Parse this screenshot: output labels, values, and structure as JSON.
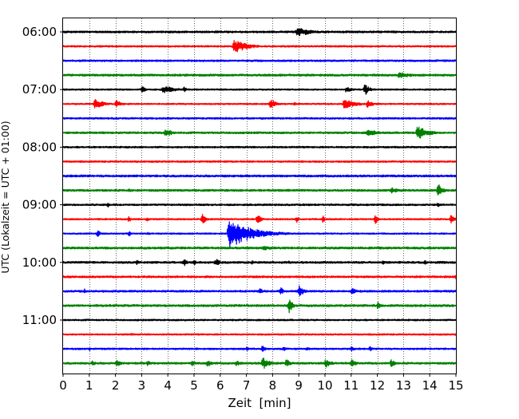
{
  "chart_data": {
    "type": "line",
    "title": "",
    "xlabel": "Zeit  [min]",
    "ylabel": "UTC (Lokalzeit = UTC + 01:00)",
    "xlim": [
      0,
      15
    ],
    "x_ticks": [
      "0",
      "1",
      "2",
      "3",
      "4",
      "5",
      "6",
      "7",
      "8",
      "9",
      "10",
      "11",
      "12",
      "13",
      "14",
      "15"
    ],
    "y_tick_labels": [
      "06:00",
      "07:00",
      "08:00",
      "09:00",
      "10:00",
      "11:00"
    ],
    "grid": "vertical dotted",
    "line_interval_minutes": 15,
    "series_colors": [
      "#000000",
      "#ff0000",
      "#0000ff",
      "#008000"
    ],
    "traces": [
      {
        "start": "06:00",
        "color": "#000000",
        "events": [
          {
            "t": 8.9,
            "amp": 0.7,
            "dur": 1.5
          }
        ]
      },
      {
        "start": "06:15",
        "color": "#ff0000",
        "events": [
          {
            "t": 6.5,
            "amp": 1.0,
            "dur": 1.4
          },
          {
            "t": 8.3,
            "amp": 0.2,
            "dur": 0.4
          }
        ]
      },
      {
        "start": "06:30",
        "color": "#0000ff",
        "events": []
      },
      {
        "start": "06:45",
        "color": "#008000",
        "events": [
          {
            "t": 8.3,
            "amp": 0.3,
            "dur": 0.3
          },
          {
            "t": 12.8,
            "amp": 0.45,
            "dur": 1.6
          }
        ]
      },
      {
        "start": "07:00",
        "color": "#000000",
        "events": [
          {
            "t": 3.0,
            "amp": 0.5,
            "dur": 0.4
          },
          {
            "t": 3.8,
            "amp": 0.6,
            "dur": 1.2
          },
          {
            "t": 4.6,
            "amp": 0.45,
            "dur": 0.4
          },
          {
            "t": 10.8,
            "amp": 0.55,
            "dur": 0.5
          },
          {
            "t": 11.5,
            "amp": 0.9,
            "dur": 0.5
          }
        ]
      },
      {
        "start": "07:15",
        "color": "#ff0000",
        "events": [
          {
            "t": 1.2,
            "amp": 0.75,
            "dur": 0.9
          },
          {
            "t": 2.0,
            "amp": 0.55,
            "dur": 0.6
          },
          {
            "t": 7.9,
            "amp": 0.9,
            "dur": 0.5
          },
          {
            "t": 8.8,
            "amp": 0.3,
            "dur": 0.3
          },
          {
            "t": 10.7,
            "amp": 0.7,
            "dur": 1.3
          },
          {
            "t": 11.6,
            "amp": 0.6,
            "dur": 0.6
          }
        ]
      },
      {
        "start": "07:30",
        "color": "#0000ff",
        "events": []
      },
      {
        "start": "07:45",
        "color": "#008000",
        "events": [
          {
            "t": 3.9,
            "amp": 0.8,
            "dur": 0.6
          },
          {
            "t": 11.6,
            "amp": 0.5,
            "dur": 1.2
          },
          {
            "t": 13.5,
            "amp": 1.0,
            "dur": 1.2
          }
        ]
      },
      {
        "start": "08:00",
        "color": "#000000",
        "events": []
      },
      {
        "start": "08:15",
        "color": "#ff0000",
        "events": []
      },
      {
        "start": "08:30",
        "color": "#0000ff",
        "events": []
      },
      {
        "start": "08:45",
        "color": "#008000",
        "events": [
          {
            "t": 2.5,
            "amp": 0.35,
            "dur": 0.3
          },
          {
            "t": 12.5,
            "amp": 0.5,
            "dur": 0.8
          },
          {
            "t": 14.3,
            "amp": 1.0,
            "dur": 0.5
          }
        ]
      },
      {
        "start": "09:00",
        "color": "#000000",
        "events": [
          {
            "t": 1.7,
            "amp": 0.6,
            "dur": 0.2
          },
          {
            "t": 14.3,
            "amp": 0.45,
            "dur": 0.3
          }
        ]
      },
      {
        "start": "09:15",
        "color": "#ff0000",
        "events": [
          {
            "t": 2.5,
            "amp": 0.6,
            "dur": 0.2
          },
          {
            "t": 3.2,
            "amp": 0.45,
            "dur": 0.2
          },
          {
            "t": 5.3,
            "amp": 0.9,
            "dur": 0.4
          },
          {
            "t": 7.4,
            "amp": 0.8,
            "dur": 0.4
          },
          {
            "t": 8.9,
            "amp": 0.7,
            "dur": 0.2
          },
          {
            "t": 9.9,
            "amp": 0.8,
            "dur": 0.2
          },
          {
            "t": 11.9,
            "amp": 0.8,
            "dur": 0.3
          },
          {
            "t": 14.8,
            "amp": 0.9,
            "dur": 0.3
          }
        ]
      },
      {
        "start": "09:30",
        "color": "#0000ff",
        "events": [
          {
            "t": 1.3,
            "amp": 0.6,
            "dur": 0.3
          },
          {
            "t": 2.5,
            "amp": 0.45,
            "dur": 0.3
          },
          {
            "t": 3.2,
            "amp": 0.3,
            "dur": 0.3
          },
          {
            "t": 6.3,
            "amp": 2.0,
            "dur": 2.5
          }
        ]
      },
      {
        "start": "09:45",
        "color": "#008000",
        "events": [
          {
            "t": 7.6,
            "amp": 0.3,
            "dur": 1.5
          }
        ]
      },
      {
        "start": "10:00",
        "color": "#000000",
        "events": [
          {
            "t": 2.8,
            "amp": 0.5,
            "dur": 0.2
          },
          {
            "t": 4.6,
            "amp": 0.7,
            "dur": 0.3
          },
          {
            "t": 5.0,
            "amp": 0.5,
            "dur": 0.2
          },
          {
            "t": 5.8,
            "amp": 0.6,
            "dur": 0.5
          },
          {
            "t": 7.2,
            "amp": 0.35,
            "dur": 0.2
          },
          {
            "t": 8.6,
            "amp": 0.3,
            "dur": 0.2
          },
          {
            "t": 12.2,
            "amp": 0.35,
            "dur": 0.3
          },
          {
            "t": 13.8,
            "amp": 0.4,
            "dur": 0.2
          }
        ]
      },
      {
        "start": "10:15",
        "color": "#ff0000",
        "events": [
          {
            "t": 15.0,
            "amp": 0.6,
            "dur": 0.2
          }
        ]
      },
      {
        "start": "10:30",
        "color": "#0000ff",
        "events": [
          {
            "t": 0.8,
            "amp": 0.5,
            "dur": 0.2
          },
          {
            "t": 1.5,
            "amp": 0.3,
            "dur": 0.2
          },
          {
            "t": 7.5,
            "amp": 0.5,
            "dur": 0.3
          },
          {
            "t": 8.3,
            "amp": 0.7,
            "dur": 0.3
          },
          {
            "t": 9.0,
            "amp": 0.9,
            "dur": 0.5
          },
          {
            "t": 11.0,
            "amp": 0.5,
            "dur": 0.6
          }
        ]
      },
      {
        "start": "10:45",
        "color": "#008000",
        "events": [
          {
            "t": 8.6,
            "amp": 1.3,
            "dur": 0.4
          },
          {
            "t": 12.0,
            "amp": 0.6,
            "dur": 0.4
          }
        ]
      },
      {
        "start": "11:00",
        "color": "#000000",
        "events": []
      },
      {
        "start": "11:15",
        "color": "#ff0000",
        "events": [
          {
            "t": 2.6,
            "amp": 0.25,
            "dur": 0.2
          },
          {
            "t": 15.0,
            "amp": 0.35,
            "dur": 0.2
          }
        ]
      },
      {
        "start": "11:30",
        "color": "#0000ff",
        "events": [
          {
            "t": 1.0,
            "amp": 0.35,
            "dur": 0.2
          },
          {
            "t": 7.0,
            "amp": 0.35,
            "dur": 0.3
          },
          {
            "t": 7.6,
            "amp": 0.6,
            "dur": 0.3
          },
          {
            "t": 8.4,
            "amp": 0.45,
            "dur": 0.3
          },
          {
            "t": 9.3,
            "amp": 0.35,
            "dur": 0.3
          },
          {
            "t": 11.0,
            "amp": 0.45,
            "dur": 0.3
          },
          {
            "t": 11.7,
            "amp": 0.4,
            "dur": 0.3
          }
        ]
      },
      {
        "start": "11:45",
        "color": "#008000",
        "events": [
          {
            "t": 1.1,
            "amp": 0.45,
            "dur": 0.4
          },
          {
            "t": 2.0,
            "amp": 0.5,
            "dur": 0.6
          },
          {
            "t": 3.2,
            "amp": 0.45,
            "dur": 0.4
          },
          {
            "t": 4.9,
            "amp": 0.5,
            "dur": 0.4
          },
          {
            "t": 5.5,
            "amp": 0.7,
            "dur": 0.4
          },
          {
            "t": 6.6,
            "amp": 0.5,
            "dur": 0.5
          },
          {
            "t": 7.6,
            "amp": 0.9,
            "dur": 0.8
          },
          {
            "t": 8.5,
            "amp": 0.6,
            "dur": 0.5
          },
          {
            "t": 10.0,
            "amp": 0.7,
            "dur": 0.6
          },
          {
            "t": 11.0,
            "amp": 0.6,
            "dur": 0.5
          },
          {
            "t": 12.5,
            "amp": 0.6,
            "dur": 0.5
          }
        ]
      }
    ]
  }
}
